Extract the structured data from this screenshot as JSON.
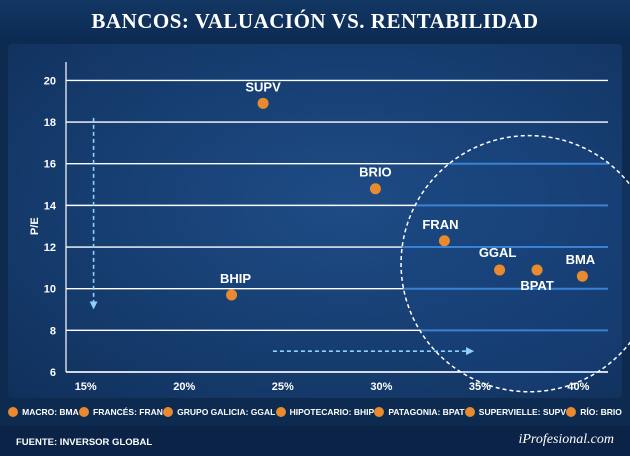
{
  "title": "BANCOS: VALUACIÓN VS. RENTABILIDAD",
  "source": "FUENTE: INVERSOR GLOBAL",
  "brand": "iProfesional.com",
  "colors": {
    "point": "#e98a2e",
    "grid": "#ffffff",
    "highlight_grid": "#4aa3ff",
    "arrow": "#8fd0ff"
  },
  "legend": [
    "MACRO: BMA",
    "FRANCÉS: FRAN",
    "GRUPO GALICIA: GGAL",
    "HIPOTECARIO: BHIP",
    "PATAGONIA: BPAT",
    "SUPERVIELLE: SUPV",
    "RÍO: BRIO"
  ],
  "chart_data": {
    "type": "scatter",
    "title": "BANCOS: VALUACIÓN VS. RENTABILIDAD",
    "xlabel": "",
    "ylabel": "P/E",
    "xlim": [
      14,
      41.5
    ],
    "ylim": [
      6,
      20.5
    ],
    "xticks": [
      15,
      20,
      25,
      30,
      35,
      40
    ],
    "xtick_labels": [
      "15%",
      "20%",
      "25%",
      "30%",
      "35%",
      "40%"
    ],
    "yticks": [
      6,
      8,
      10,
      12,
      14,
      16,
      18,
      20
    ],
    "grid": "horizontal",
    "highlight_circle": {
      "center_x": 37.5,
      "center_y": 11.2,
      "radius_x": 6.5
    },
    "arrows": [
      {
        "direction": "down",
        "x": 15.4,
        "from_y": 18.2,
        "to_y": 9.2
      },
      {
        "direction": "right",
        "y": 7.0,
        "from_x": 24.5,
        "to_x": 34.5
      }
    ],
    "points": [
      {
        "label": "SUPV",
        "x": 24.0,
        "y": 18.9
      },
      {
        "label": "BRIO",
        "x": 29.7,
        "y": 14.8
      },
      {
        "label": "FRAN",
        "x": 33.2,
        "y": 12.3
      },
      {
        "label": "BHIP",
        "x": 22.4,
        "y": 9.7
      },
      {
        "label": "GGAL",
        "x": 36.0,
        "y": 10.9
      },
      {
        "label": "BPAT",
        "x": 37.9,
        "y": 10.9
      },
      {
        "label": "BMA",
        "x": 40.2,
        "y": 10.6
      }
    ]
  }
}
